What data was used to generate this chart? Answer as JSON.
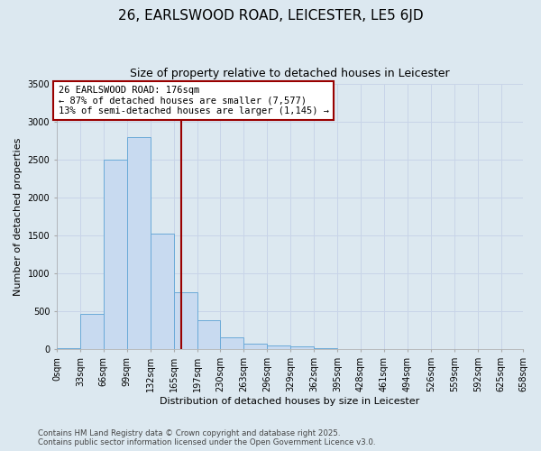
{
  "title": "26, EARLSWOOD ROAD, LEICESTER, LE5 6JD",
  "subtitle": "Size of property relative to detached houses in Leicester",
  "xlabel": "Distribution of detached houses by size in Leicester",
  "ylabel": "Number of detached properties",
  "bin_edges": [
    0,
    33,
    66,
    99,
    132,
    165,
    198,
    231,
    264,
    297,
    330,
    363,
    396,
    429,
    462,
    495,
    528,
    561,
    594,
    627,
    658
  ],
  "xtick_labels": [
    "0sqm",
    "33sqm",
    "66sqm",
    "99sqm",
    "132sqm",
    "165sqm",
    "197sqm",
    "230sqm",
    "263sqm",
    "296sqm",
    "329sqm",
    "362sqm",
    "395sqm",
    "428sqm",
    "461sqm",
    "494sqm",
    "526sqm",
    "559sqm",
    "592sqm",
    "625sqm",
    "658sqm"
  ],
  "bar_heights": [
    20,
    470,
    2500,
    2800,
    1530,
    750,
    390,
    155,
    75,
    55,
    40,
    20,
    10,
    5,
    2,
    1,
    0,
    0,
    0,
    0
  ],
  "bar_facecolor": "#c8daf0",
  "bar_edgecolor": "#6baad8",
  "property_size": 176,
  "property_label": "26 EARLSWOOD ROAD: 176sqm",
  "annotation_line1": "← 87% of detached houses are smaller (7,577)",
  "annotation_line2": "13% of semi-detached houses are larger (1,145) →",
  "vline_color": "#990000",
  "annotation_box_edgecolor": "#990000",
  "annotation_box_facecolor": "#ffffff",
  "ylim": [
    0,
    3500
  ],
  "yticks": [
    0,
    500,
    1000,
    1500,
    2000,
    2500,
    3000,
    3500
  ],
  "grid_color": "#c8d4e8",
  "bg_color": "#dce8f0",
  "title_fontsize": 11,
  "subtitle_fontsize": 9,
  "axis_label_fontsize": 8,
  "tick_fontsize": 7,
  "annotation_fontsize": 7.5,
  "footer_line1": "Contains HM Land Registry data © Crown copyright and database right 2025.",
  "footer_line2": "Contains public sector information licensed under the Open Government Licence v3.0."
}
